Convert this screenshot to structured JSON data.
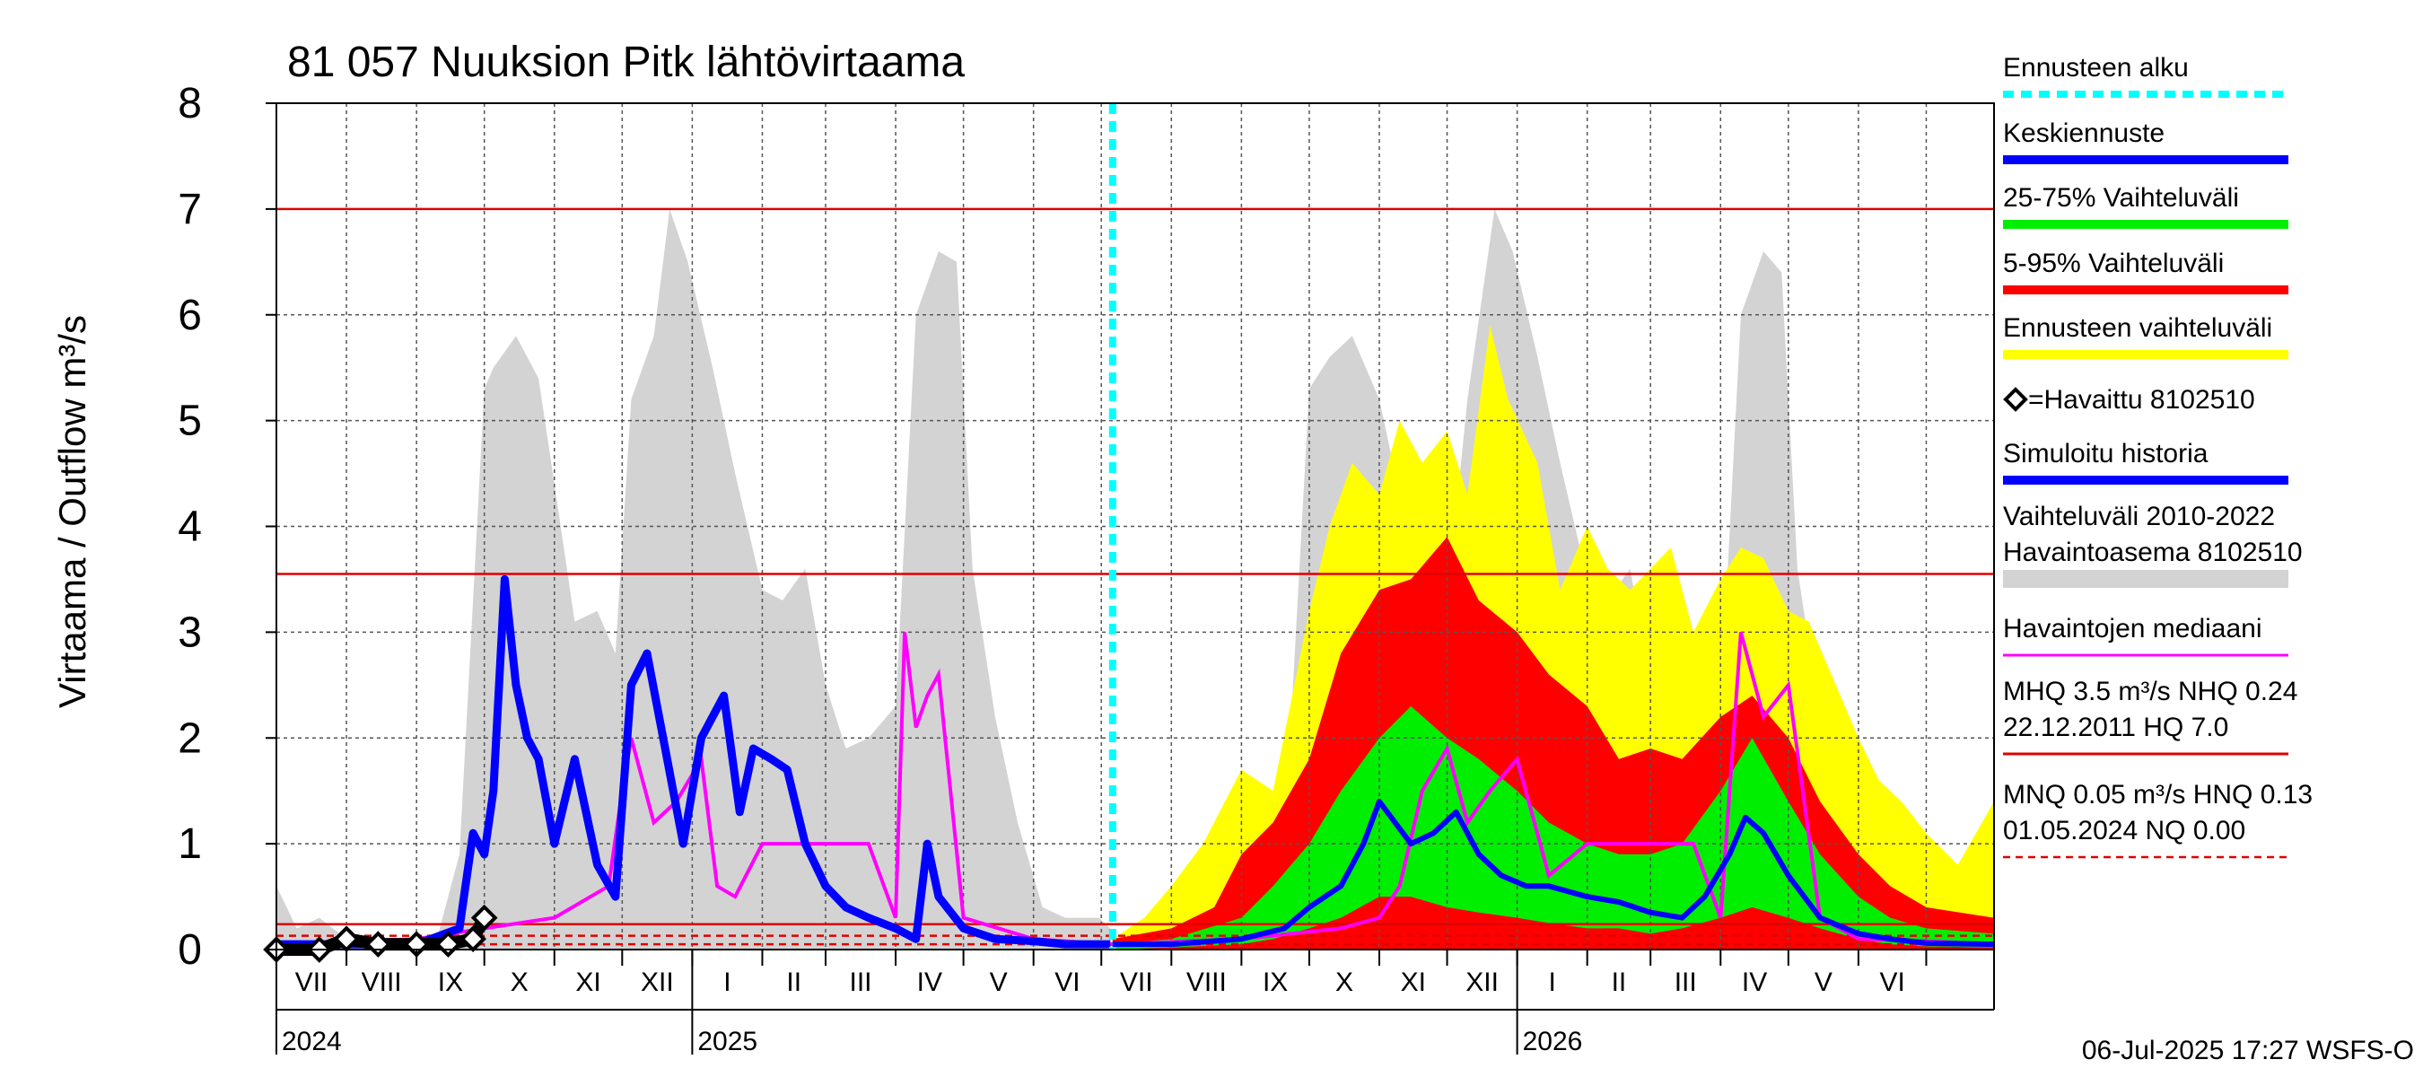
{
  "chart_data": {
    "type": "area",
    "title": "81 057 Nuuksion Pitk lähtövirtaama",
    "ylabel": "Virtaama / Outflow    m³/s",
    "ylim": [
      0,
      8
    ],
    "yticks": [
      "0",
      "1",
      "2",
      "3",
      "4",
      "5",
      "6",
      "7",
      "8"
    ],
    "x_range": [
      "2024-07-01",
      "2026-07-31"
    ],
    "months": [
      "VII",
      "VIII",
      "IX",
      "X",
      "XI",
      "XII",
      "I",
      "II",
      "III",
      "IV",
      "V",
      "VI",
      "VII",
      "VIII",
      "IX",
      "X",
      "XI",
      "XII",
      "I",
      "II",
      "III",
      "IV",
      "V",
      "VI"
    ],
    "years": [
      {
        "label": "2024",
        "date": "2024-07-01"
      },
      {
        "label": "2025",
        "date": "2025-01-01"
      },
      {
        "label": "2026",
        "date": "2026-01-01"
      }
    ],
    "forecast_start": "2025-07-06",
    "grid": true,
    "reference_lines": [
      {
        "name": "HQ",
        "value": 7.0,
        "style": "solid",
        "color": "#e00000"
      },
      {
        "name": "MHQ",
        "value": 3.55,
        "style": "solid",
        "color": "#e00000"
      },
      {
        "name": "NHQ",
        "value": 0.24,
        "style": "solid",
        "color": "#e00000"
      },
      {
        "name": "HNQ",
        "value": 0.13,
        "style": "dashed",
        "color": "#e00000"
      },
      {
        "name": "MNQ",
        "value": 0.05,
        "style": "dashed",
        "color": "#e00000"
      }
    ],
    "colors": {
      "history_band": "#d3d3d3",
      "forecast_range": "#ffff00",
      "p5_95": "#ff0000",
      "p25_75": "#00ee00",
      "mean_forecast": "#0000ff",
      "simulated": "#0000ff",
      "median": "#ff00ff",
      "observed": "#000000",
      "forecast_start": "#00ffff",
      "reference": "#e00000",
      "minmax_light": "#d3d3d3"
    },
    "history_band": {
      "dates": [
        "2024-07-01",
        "2024-07-10",
        "2024-07-20",
        "2024-08-01",
        "2024-08-20",
        "2024-09-10",
        "2024-09-20",
        "2024-10-01",
        "2024-10-05",
        "2024-10-15",
        "2024-10-25",
        "2024-11-01",
        "2024-11-10",
        "2024-11-20",
        "2024-11-28",
        "2024-12-05",
        "2024-12-15",
        "2024-12-22",
        "2024-12-30",
        "2025-01-10",
        "2025-01-20",
        "2025-02-01",
        "2025-02-10",
        "2025-02-20",
        "2025-03-01",
        "2025-03-10",
        "2025-03-20",
        "2025-04-01",
        "2025-04-10",
        "2025-04-20",
        "2025-04-28",
        "2025-05-05",
        "2025-05-15",
        "2025-05-25",
        "2025-06-05",
        "2025-06-15",
        "2025-06-30",
        "2025-07-05"
      ],
      "upper": [
        0.6,
        0.2,
        0.3,
        0.1,
        0.1,
        0.1,
        0.9,
        5.3,
        5.5,
        5.8,
        5.4,
        4.4,
        3.1,
        3.2,
        2.8,
        5.2,
        5.8,
        7.0,
        6.5,
        5.5,
        4.5,
        3.4,
        3.3,
        3.6,
        2.5,
        1.9,
        2.0,
        2.3,
        6.0,
        6.6,
        6.5,
        3.6,
        2.2,
        1.2,
        0.4,
        0.3,
        0.3,
        0.2
      ],
      "lower": [
        0.0,
        0.0,
        0.0,
        0.0,
        0.0,
        0.0,
        0.0,
        0.0,
        0.0,
        0.0,
        0.0,
        0.0,
        0.0,
        0.0,
        0.0,
        0.0,
        0.0,
        0.0,
        0.0,
        0.0,
        0.0,
        0.0,
        0.0,
        0.0,
        0.0,
        0.0,
        0.0,
        0.0,
        0.0,
        0.0,
        0.0,
        0.0,
        0.0,
        0.0,
        0.0,
        0.0,
        0.0,
        0.0
      ]
    },
    "forecast_history_band": {
      "dates": [
        "2025-07-06",
        "2025-08-01",
        "2025-09-01",
        "2025-09-20",
        "2025-10-01",
        "2025-10-10",
        "2025-10-20",
        "2025-11-01",
        "2025-11-10",
        "2025-11-20",
        "2025-12-01",
        "2025-12-10",
        "2025-12-22",
        "2025-12-30",
        "2026-01-10",
        "2026-01-20",
        "2026-02-01",
        "2026-02-10",
        "2026-02-20",
        "2026-03-01",
        "2026-03-10",
        "2026-03-20",
        "2026-04-01",
        "2026-04-10",
        "2026-04-20",
        "2026-04-28",
        "2026-05-05",
        "2026-05-15",
        "2026-05-25",
        "2026-06-05",
        "2026-06-15",
        "2026-06-30",
        "2026-07-31"
      ],
      "upper": [
        0.1,
        0.1,
        0.3,
        1.0,
        5.3,
        5.6,
        5.8,
        5.2,
        4.3,
        3.2,
        3.3,
        5.2,
        7.0,
        6.6,
        5.6,
        4.6,
        3.5,
        3.3,
        3.6,
        2.5,
        2.0,
        2.0,
        2.3,
        6.0,
        6.6,
        6.4,
        3.6,
        2.2,
        1.2,
        0.5,
        0.3,
        0.3,
        0.3
      ]
    },
    "forecast_range": {
      "dates": [
        "2025-07-06",
        "2025-07-20",
        "2025-08-01",
        "2025-08-15",
        "2025-09-01",
        "2025-09-15",
        "2025-10-01",
        "2025-10-10",
        "2025-10-20",
        "2025-11-01",
        "2025-11-10",
        "2025-11-20",
        "2025-12-01",
        "2025-12-10",
        "2025-12-20",
        "2025-12-28",
        "2026-01-10",
        "2026-01-20",
        "2026-02-01",
        "2026-02-10",
        "2026-02-20",
        "2026-03-01",
        "2026-03-10",
        "2026-03-20",
        "2026-04-01",
        "2026-04-10",
        "2026-04-20",
        "2026-05-01",
        "2026-05-10",
        "2026-05-20",
        "2026-06-01",
        "2026-06-10",
        "2026-06-20",
        "2026-07-01",
        "2026-07-15",
        "2026-07-31"
      ],
      "upper": [
        0.1,
        0.3,
        0.6,
        1.0,
        1.7,
        1.5,
        3.2,
        4.0,
        4.6,
        4.3,
        5.0,
        4.6,
        4.9,
        4.3,
        5.9,
        5.2,
        4.6,
        3.4,
        4.0,
        3.6,
        3.4,
        3.6,
        3.8,
        3.0,
        3.5,
        3.8,
        3.7,
        3.2,
        3.1,
        2.6,
        2.0,
        1.6,
        1.4,
        1.1,
        0.8,
        1.4
      ],
      "lower": [
        0.0,
        0.0,
        0.0,
        0.0,
        0.0,
        0.0,
        0.0,
        0.0,
        0.0,
        0.0,
        0.0,
        0.0,
        0.0,
        0.0,
        0.0,
        0.0,
        0.0,
        0.0,
        0.0,
        0.0,
        0.0,
        0.0,
        0.0,
        0.0,
        0.0,
        0.0,
        0.0,
        0.0,
        0.0,
        0.0,
        0.0,
        0.0,
        0.0,
        0.0,
        0.0,
        0.0
      ]
    },
    "p5_95": {
      "dates": [
        "2025-07-06",
        "2025-08-01",
        "2025-08-20",
        "2025-09-01",
        "2025-09-15",
        "2025-10-01",
        "2025-10-15",
        "2025-11-01",
        "2025-11-15",
        "2025-12-01",
        "2025-12-15",
        "2026-01-01",
        "2026-01-15",
        "2026-02-01",
        "2026-02-15",
        "2026-03-01",
        "2026-03-15",
        "2026-04-01",
        "2026-04-15",
        "2026-05-01",
        "2026-05-15",
        "2026-06-01",
        "2026-06-15",
        "2026-07-01",
        "2026-07-31"
      ],
      "upper": [
        0.1,
        0.2,
        0.4,
        0.9,
        1.2,
        1.8,
        2.8,
        3.4,
        3.5,
        3.9,
        3.3,
        3.0,
        2.6,
        2.3,
        1.8,
        1.9,
        1.8,
        2.2,
        2.4,
        2.0,
        1.4,
        0.9,
        0.6,
        0.4,
        0.3
      ],
      "lower": [
        0.0,
        0.0,
        0.0,
        0.0,
        0.0,
        0.0,
        0.0,
        0.0,
        0.0,
        0.0,
        0.0,
        0.0,
        0.0,
        0.0,
        0.0,
        0.0,
        0.0,
        0.0,
        0.0,
        0.0,
        0.0,
        0.0,
        0.0,
        0.0,
        0.0
      ]
    },
    "p25_75": {
      "dates": [
        "2025-07-06",
        "2025-08-01",
        "2025-09-01",
        "2025-09-15",
        "2025-10-01",
        "2025-10-15",
        "2025-11-01",
        "2025-11-15",
        "2025-12-01",
        "2025-12-15",
        "2026-01-01",
        "2026-01-15",
        "2026-02-01",
        "2026-02-15",
        "2026-03-01",
        "2026-03-15",
        "2026-04-01",
        "2026-04-15",
        "2026-05-01",
        "2026-05-15",
        "2026-06-01",
        "2026-06-15",
        "2026-07-01",
        "2026-07-31"
      ],
      "upper": [
        0.05,
        0.1,
        0.3,
        0.6,
        1.0,
        1.5,
        2.0,
        2.3,
        2.0,
        1.8,
        1.5,
        1.2,
        1.0,
        0.9,
        0.9,
        1.0,
        1.5,
        2.0,
        1.4,
        0.9,
        0.5,
        0.3,
        0.2,
        0.15
      ],
      "lower": [
        0.0,
        0.02,
        0.05,
        0.1,
        0.2,
        0.3,
        0.5,
        0.5,
        0.4,
        0.35,
        0.3,
        0.25,
        0.2,
        0.2,
        0.15,
        0.2,
        0.3,
        0.4,
        0.3,
        0.2,
        0.1,
        0.05,
        0.03,
        0.02
      ]
    },
    "mean_forecast": {
      "dates": [
        "2025-07-06",
        "2025-08-01",
        "2025-09-01",
        "2025-09-20",
        "2025-10-01",
        "2025-10-15",
        "2025-10-25",
        "2025-11-01",
        "2025-11-08",
        "2025-11-15",
        "2025-11-25",
        "2025-12-05",
        "2025-12-15",
        "2025-12-25",
        "2026-01-05",
        "2026-01-15",
        "2026-02-01",
        "2026-02-15",
        "2026-03-01",
        "2026-03-15",
        "2026-03-25",
        "2026-04-05",
        "2026-04-12",
        "2026-04-20",
        "2026-05-01",
        "2026-05-15",
        "2026-06-01",
        "2026-06-15",
        "2026-07-01",
        "2026-07-31"
      ],
      "values": [
        0.05,
        0.05,
        0.1,
        0.2,
        0.4,
        0.6,
        1.0,
        1.4,
        1.2,
        1.0,
        1.1,
        1.3,
        0.9,
        0.7,
        0.6,
        0.6,
        0.5,
        0.45,
        0.35,
        0.3,
        0.5,
        0.9,
        1.25,
        1.1,
        0.7,
        0.3,
        0.15,
        0.1,
        0.06,
        0.05
      ]
    },
    "simulated": {
      "dates": [
        "2024-07-01",
        "2024-09-01",
        "2024-09-20",
        "2024-09-26",
        "2024-10-01",
        "2024-10-05",
        "2024-10-10",
        "2024-10-15",
        "2024-10-20",
        "2024-10-25",
        "2024-11-01",
        "2024-11-10",
        "2024-11-20",
        "2024-11-28",
        "2024-12-05",
        "2024-12-12",
        "2024-12-20",
        "2024-12-28",
        "2025-01-05",
        "2025-01-15",
        "2025-01-22",
        "2025-01-28",
        "2025-02-05",
        "2025-02-12",
        "2025-02-20",
        "2025-03-01",
        "2025-03-10",
        "2025-03-20",
        "2025-04-01",
        "2025-04-10",
        "2025-04-15",
        "2025-04-20",
        "2025-05-01",
        "2025-05-15",
        "2025-06-01",
        "2025-06-15",
        "2025-07-05"
      ],
      "values": [
        0.05,
        0.05,
        0.2,
        1.1,
        0.9,
        1.5,
        3.5,
        2.5,
        2.0,
        1.8,
        1.0,
        1.8,
        0.8,
        0.5,
        2.5,
        2.8,
        1.9,
        1.0,
        2.0,
        2.4,
        1.3,
        1.9,
        1.8,
        1.7,
        1.0,
        0.6,
        0.4,
        0.3,
        0.2,
        0.1,
        1.0,
        0.5,
        0.2,
        0.1,
        0.08,
        0.05,
        0.05
      ]
    },
    "median": {
      "dates": [
        "2024-07-01",
        "2024-09-01",
        "2024-10-01",
        "2024-11-01",
        "2024-11-25",
        "2024-12-01",
        "2024-12-05",
        "2024-12-15",
        "2024-12-25",
        "2025-01-05",
        "2025-01-12",
        "2025-01-20",
        "2025-02-01",
        "2025-03-01",
        "2025-03-20",
        "2025-04-01",
        "2025-04-05",
        "2025-04-10",
        "2025-04-15",
        "2025-04-20",
        "2025-05-01",
        "2025-06-01",
        "2025-07-06",
        "2025-09-01",
        "2025-10-15",
        "2025-11-01",
        "2025-11-10",
        "2025-11-20",
        "2025-12-01",
        "2025-12-10",
        "2025-12-20",
        "2026-01-01",
        "2026-01-15",
        "2026-02-01",
        "2026-03-01",
        "2026-03-20",
        "2026-04-01",
        "2026-04-10",
        "2026-04-20",
        "2026-05-01",
        "2026-05-15",
        "2026-06-01",
        "2026-07-01",
        "2026-07-31"
      ],
      "values": [
        0.05,
        0.1,
        0.2,
        0.3,
        0.6,
        1.5,
        2.0,
        1.2,
        1.4,
        1.8,
        0.6,
        0.5,
        1.0,
        1.0,
        1.0,
        0.3,
        3.0,
        2.1,
        2.4,
        2.6,
        0.3,
        0.1,
        0.05,
        0.1,
        0.2,
        0.3,
        0.6,
        1.5,
        1.9,
        1.2,
        1.5,
        1.8,
        0.7,
        1.0,
        1.0,
        1.0,
        0.3,
        3.0,
        2.2,
        2.5,
        0.3,
        0.1,
        0.08,
        0.05
      ]
    },
    "observed": {
      "dates": [
        "2024-07-01",
        "2024-07-20",
        "2024-08-01",
        "2024-08-15",
        "2024-09-01",
        "2024-09-15",
        "2024-09-26",
        "2024-10-01"
      ],
      "values": [
        0.0,
        0.0,
        0.1,
        0.05,
        0.05,
        0.05,
        0.1,
        0.3
      ]
    },
    "legend": [
      {
        "label": "Ennusteen alku",
        "kind": "dotted",
        "color": "#00ffff"
      },
      {
        "label": "Keskiennuste",
        "kind": "line",
        "color": "#0000ff"
      },
      {
        "label": "25-75% Vaihteluväli",
        "kind": "line",
        "color": "#00ee00"
      },
      {
        "label": "5-95% Vaihteluväli",
        "kind": "line",
        "color": "#ff0000"
      },
      {
        "label": "Ennusteen vaihteluväli",
        "kind": "line",
        "color": "#ffff00"
      },
      {
        "label": "=Havaittu 8102510",
        "kind": "diamond",
        "color": "#000000"
      },
      {
        "label": "Simuloitu historia",
        "kind": "line",
        "color": "#0000ff"
      },
      {
        "label": "Vaihteluväli 2010-2022",
        "label2": " Havaintoasema 8102510",
        "kind": "band",
        "color": "#d3d3d3"
      },
      {
        "label": "Havaintojen mediaani",
        "kind": "thin",
        "color": "#ff00ff"
      },
      {
        "label": "MHQ  3.5 m³/s NHQ 0.24",
        "label2": "22.12.2011 HQ  7.0",
        "kind": "thin",
        "color": "#e00000"
      },
      {
        "label": "MNQ 0.05 m³/s HNQ 0.13",
        "label2": "01.05.2024 NQ 0.00",
        "kind": "dashed",
        "color": "#e00000"
      }
    ],
    "footer": "06-Jul-2025 17:27 WSFS-O"
  }
}
